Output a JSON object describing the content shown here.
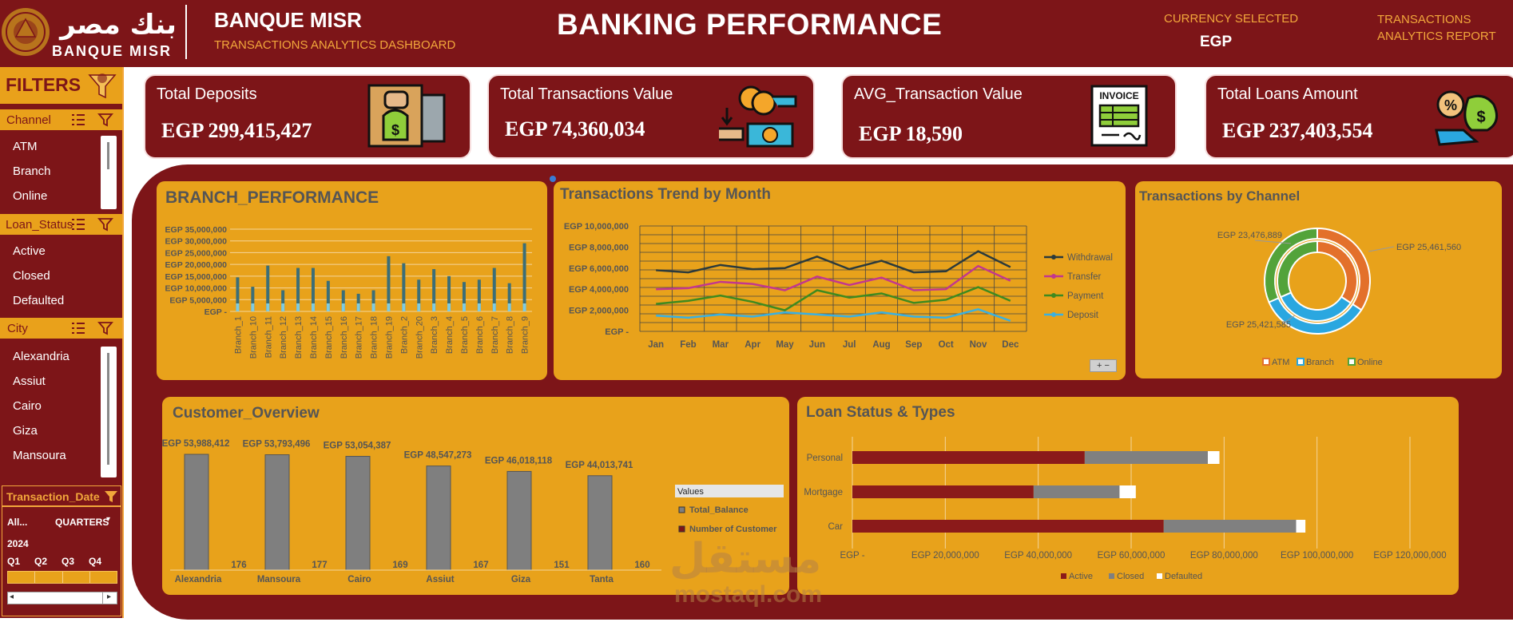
{
  "header": {
    "logo_arabic": "بنك مصر",
    "logo_latin": "BANQUE MISR",
    "bank_name": "BANQUE MISR",
    "subtitle": "TRANSACTIONS ANALYTICS DASHBOARD",
    "title": "BANKING PERFORMANCE",
    "currency_label": "CURRENCY SELECTED",
    "currency_value": "EGP",
    "report_label": "TRANSACTIONS ANALYTICS REPORT"
  },
  "sidebar": {
    "title": "FILTERS",
    "channel": {
      "title": "Channel",
      "items": [
        "ATM",
        "Branch",
        "Online"
      ]
    },
    "loan_status": {
      "title": "Loan_Status",
      "items": [
        "Active",
        "Closed",
        "Defaulted"
      ]
    },
    "city": {
      "title": "City",
      "items": [
        "Alexandria",
        "Assiut",
        "Cairo",
        "Giza",
        "Mansoura"
      ]
    },
    "date": {
      "title": "Transaction_Date",
      "all_label": "All...",
      "period_label": "QUARTERS",
      "year": "2024",
      "quarters": [
        "Q1",
        "Q2",
        "Q3",
        "Q4"
      ]
    }
  },
  "kpis": [
    {
      "label": "Total Deposits",
      "value": "EGP 299,415,427"
    },
    {
      "label": "Total Transactions Value",
      "value": "EGP 74,360,034"
    },
    {
      "label": "AVG_Transaction Value",
      "value": "EGP 18,590"
    },
    {
      "label": "Total Loans Amount",
      "value": "EGP 237,403,554"
    }
  ],
  "invoice_text": "INVOICE",
  "watermark": {
    "arabic": "مستقل",
    "latin": "mostaql.com"
  },
  "colors": {
    "maroon": "#7d1518",
    "gold": "#e8a21b",
    "orange": "#f2a73b"
  },
  "chart_data": [
    {
      "id": "branch",
      "type": "bar",
      "title": "BRANCH_PERFORMANCE",
      "categories": [
        "Branch_1",
        "Branch_10",
        "Branch_11",
        "Branch_12",
        "Branch_13",
        "Branch_14",
        "Branch_15",
        "Branch_16",
        "Branch_17",
        "Branch_18",
        "Branch_19",
        "Branch_2",
        "Branch_20",
        "Branch_3",
        "Branch_4",
        "Branch_5",
        "Branch_6",
        "Branch_7",
        "Branch_8",
        "Branch_9"
      ],
      "values": [
        14500000,
        10500000,
        19500000,
        9000000,
        18500000,
        18500000,
        13000000,
        9000000,
        7500000,
        9000000,
        23500000,
        20500000,
        13500000,
        18000000,
        15000000,
        12500000,
        13500000,
        18500000,
        12000000,
        29000000
      ],
      "ylim": [
        0,
        35000000
      ],
      "yticks": [
        0,
        5000000,
        10000000,
        15000000,
        20000000,
        25000000,
        30000000,
        35000000
      ],
      "ytick_labels": [
        "EGP -",
        "EGP 5,000,000",
        "EGP 10,000,000",
        "EGP 15,000,000",
        "EGP 20,000,000",
        "EGP 25,000,000",
        "EGP 30,000,000",
        "EGP 35,000,000"
      ]
    },
    {
      "id": "trend",
      "type": "line",
      "title": "Transactions Trend by Month",
      "categories": [
        "Jan",
        "Feb",
        "Mar",
        "Apr",
        "May",
        "Jun",
        "Jul",
        "Aug",
        "Sep",
        "Oct",
        "Nov",
        "Dec"
      ],
      "series": [
        {
          "name": "Withdrawal",
          "color": "#2b3a3c",
          "values": [
            5800000,
            5600000,
            6300000,
            5900000,
            6000000,
            7100000,
            5900000,
            6700000,
            5600000,
            5700000,
            7600000,
            6100000
          ]
        },
        {
          "name": "Transfer",
          "color": "#c2378e",
          "values": [
            4000000,
            4100000,
            4700000,
            4500000,
            3900000,
            5200000,
            4400000,
            5100000,
            3900000,
            4000000,
            6200000,
            4800000
          ]
        },
        {
          "name": "Payment",
          "color": "#3e8a1f",
          "values": [
            2600000,
            2900000,
            3400000,
            2800000,
            2000000,
            3900000,
            3200000,
            3600000,
            2700000,
            3000000,
            4200000,
            2900000
          ]
        },
        {
          "name": "Deposit",
          "color": "#3ab0e0",
          "values": [
            1500000,
            1300000,
            1600000,
            1400000,
            1800000,
            1600000,
            1400000,
            1800000,
            1400000,
            1300000,
            2100000,
            1000000
          ]
        }
      ],
      "ylim": [
        0,
        10000000
      ],
      "yticks": [
        0,
        2000000,
        4000000,
        6000000,
        8000000,
        10000000
      ],
      "ytick_labels": [
        "EGP -",
        "EGP 2,000,000",
        "EGP 4,000,000",
        "EGP 6,000,000",
        "EGP 8,000,000",
        "EGP 10,000,000"
      ]
    },
    {
      "id": "channel",
      "type": "pie",
      "title": "Transactions by Channel",
      "categories": [
        "ATM",
        "Branch",
        "Online"
      ],
      "colors": [
        "#e3702b",
        "#2aa7e0",
        "#53a33a"
      ],
      "values": [
        25461560,
        25421585,
        23476889
      ],
      "data_labels": [
        "EGP 25,461,560",
        "EGP 25,421,585",
        "EGP 23,476,889"
      ],
      "legend": "bottom"
    },
    {
      "id": "customer",
      "type": "bar",
      "title": "Customer_Overview",
      "categories": [
        "Alexandria",
        "Mansoura",
        "Cairo",
        "Assiut",
        "Giza",
        "Tanta"
      ],
      "series": [
        {
          "name": "Total_Balance",
          "color": "#7f7f7f",
          "values": [
            53988412,
            53793496,
            53054387,
            48547273,
            46018118,
            44013741
          ],
          "labels": [
            "EGP 53,988,412",
            "EGP 53,793,496",
            "EGP 53,054,387",
            "EGP 48,547,273",
            "EGP 46,018,118",
            "EGP 44,013,741"
          ]
        },
        {
          "name": "Number of Customer",
          "color": "#7d1518",
          "values": [
            176,
            177,
            169,
            167,
            151,
            160
          ]
        }
      ],
      "legend_title": "Values"
    },
    {
      "id": "loan",
      "type": "bar",
      "title": "Loan Status & Types",
      "orientation": "horizontal",
      "stacked": true,
      "categories": [
        "Personal",
        "Mortgage",
        "Car"
      ],
      "series": [
        {
          "name": "Active",
          "color": "#8b1a1a",
          "values": [
            50000000,
            39000000,
            67000000
          ]
        },
        {
          "name": "Closed",
          "color": "#808080",
          "values": [
            26500000,
            18500000,
            28500000
          ]
        },
        {
          "name": "Defaulted",
          "color": "#ffffff",
          "values": [
            2500000,
            3500000,
            2000000
          ]
        }
      ],
      "xlim": [
        0,
        120000000
      ],
      "xticks": [
        0,
        20000000,
        40000000,
        60000000,
        80000000,
        100000000,
        120000000
      ],
      "xtick_labels": [
        "EGP -",
        "EGP 20,000,000",
        "EGP 40,000,000",
        "EGP 60,000,000",
        "EGP 80,000,000",
        "EGP 100,000,000",
        "EGP 120,000,000"
      ],
      "legend": "bottom"
    }
  ]
}
